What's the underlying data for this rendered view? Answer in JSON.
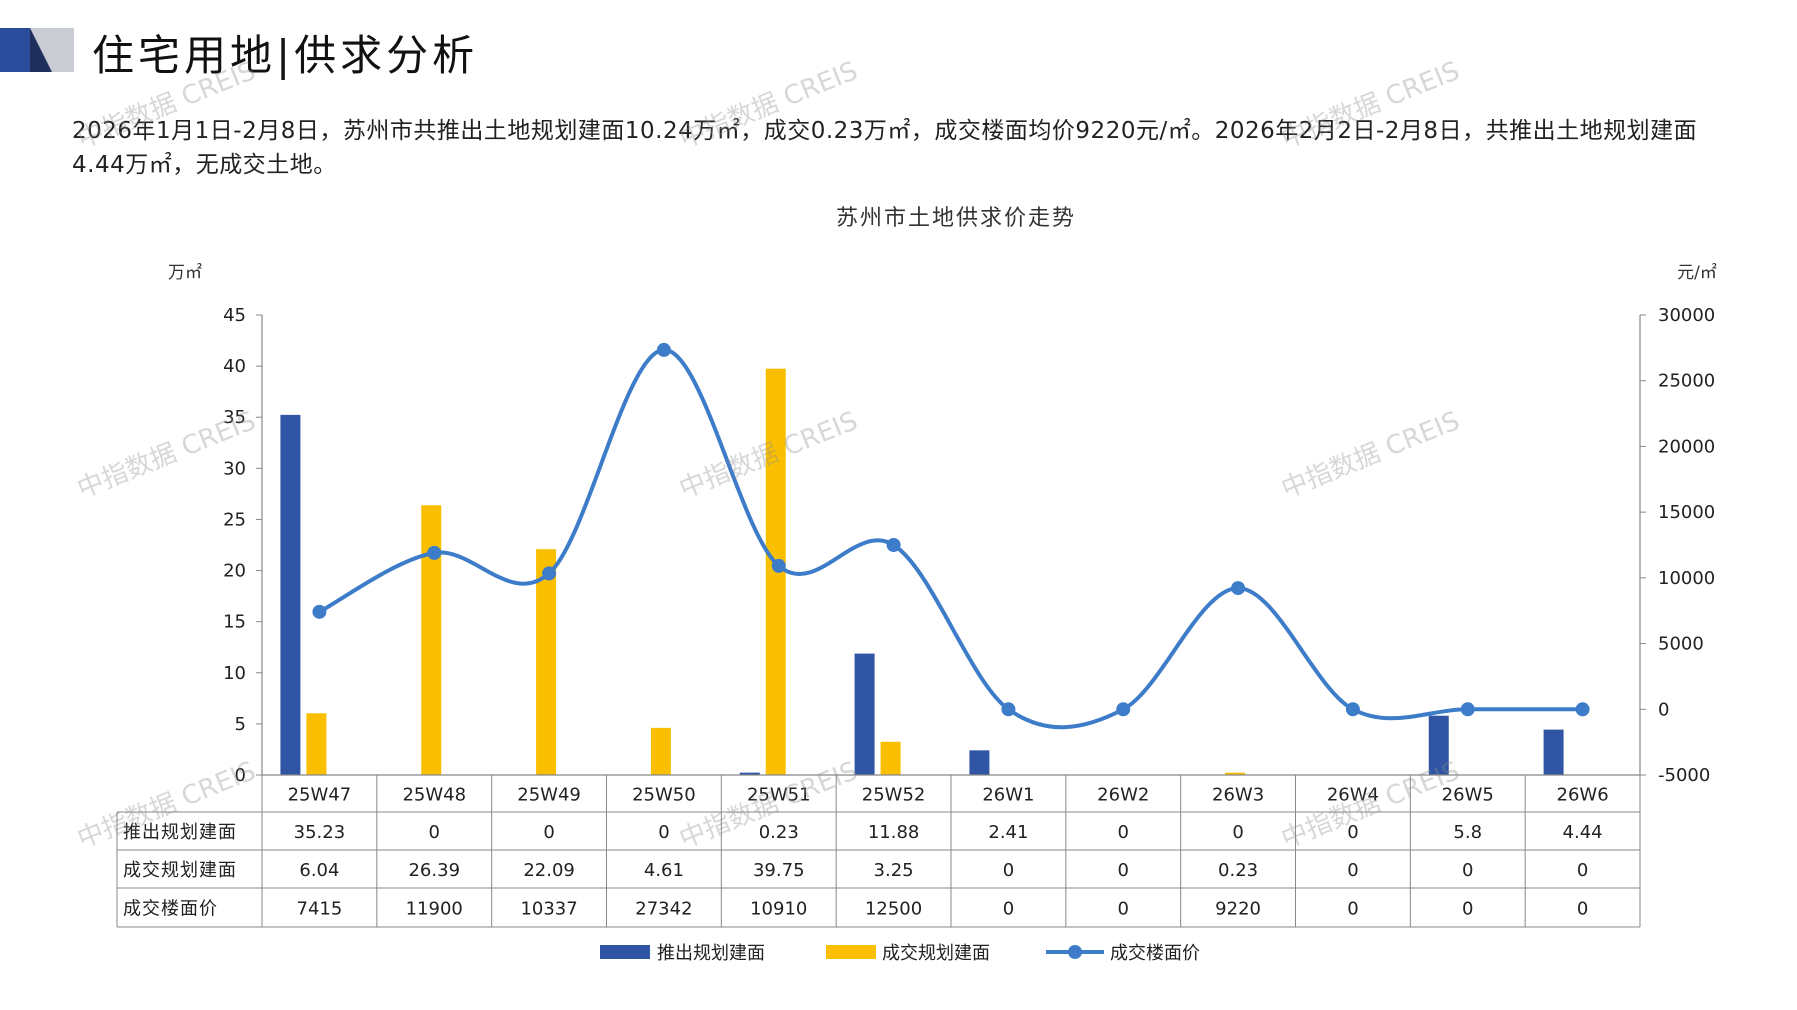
{
  "header": {
    "title": "住宅用地|供求分析",
    "summary": "2026年1月1日-2月8日，苏州市共推出土地规划建面10.24万㎡，成交0.23万㎡，成交楼面均价9220元/㎡。2026年2月2日-2月8日，共推出土地规划建面4.44万㎡，无成交土地。"
  },
  "watermark_text": "中指数据 CREIS",
  "colors": {
    "supply": "#2f55a4",
    "deal_area": "#f9bf00",
    "price": "#3d7cc9",
    "header_blue": "#2b4c9b",
    "header_gray": "#c9ccd3"
  },
  "chart_data": {
    "type": "bar",
    "title": "苏州市土地供求价走势",
    "y_left_unit": "万㎡",
    "y_right_unit": "元/㎡",
    "y_left_range": [
      0,
      45
    ],
    "y_left_ticks": [
      0,
      5,
      10,
      15,
      20,
      25,
      30,
      35,
      40,
      45
    ],
    "y_right_range": [
      -5000,
      30000
    ],
    "y_right_ticks": [
      -5000,
      0,
      5000,
      10000,
      15000,
      20000,
      25000,
      30000
    ],
    "categories": [
      "25W47",
      "25W48",
      "25W49",
      "25W50",
      "25W51",
      "25W52",
      "26W1",
      "26W2",
      "26W3",
      "26W4",
      "26W5",
      "26W6"
    ],
    "series": [
      {
        "name": "推出规划建面",
        "type": "bar",
        "axis": "left",
        "values": [
          35.23,
          0,
          0,
          0,
          0.23,
          11.88,
          2.41,
          0,
          0,
          0,
          5.8,
          4.44
        ],
        "labels": [
          "35.23",
          "0",
          "0",
          "0",
          "0.23",
          "11.88",
          "2.41",
          "0",
          "0",
          "0",
          "5.8",
          "4.44"
        ]
      },
      {
        "name": "成交规划建面",
        "type": "bar",
        "axis": "left",
        "values": [
          6.04,
          26.39,
          22.09,
          4.61,
          39.75,
          3.25,
          0,
          0,
          0.23,
          0,
          0,
          0
        ],
        "labels": [
          "6.04",
          "26.39",
          "22.09",
          "4.61",
          "39.75",
          "3.25",
          "0",
          "0",
          "0.23",
          "0",
          "0",
          "0"
        ]
      },
      {
        "name": "成交楼面价",
        "type": "line",
        "axis": "right",
        "values": [
          7415,
          11900,
          10337,
          27342,
          10910,
          12500,
          0,
          0,
          9220,
          0,
          0,
          0
        ],
        "labels": [
          "7415",
          "11900",
          "10337",
          "27342",
          "10910",
          "12500",
          "0",
          "0",
          "9220",
          "0",
          "0",
          "0"
        ]
      }
    ],
    "legend_position": "bottom",
    "grid": false
  }
}
